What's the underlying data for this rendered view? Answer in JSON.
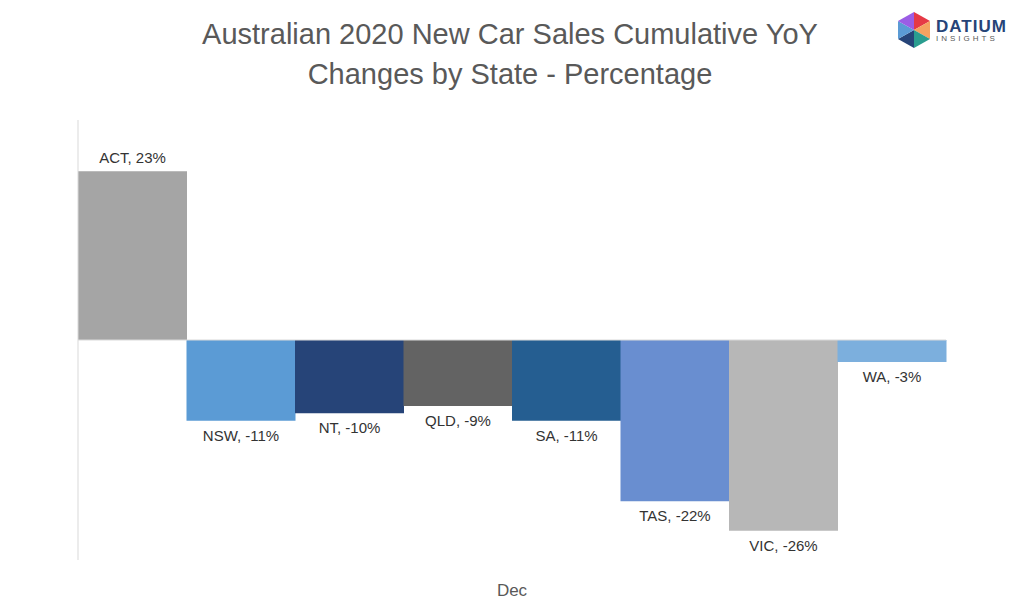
{
  "chart_data": {
    "type": "bar",
    "title": "Australian 2020 New Car Sales Cumulative YoY Changes by State - Percentage",
    "x_label": "Dec",
    "annotations": [
      "DATIUM",
      "INSIGHTS"
    ],
    "categories": [
      "ACT",
      "NSW",
      "NT",
      "QLD",
      "SA",
      "TAS",
      "VIC",
      "WA"
    ],
    "values": [
      23,
      -11,
      -10,
      -9,
      -11,
      -22,
      -26,
      -3
    ],
    "value_labels": [
      "ACT, 23%",
      "NSW, -11%",
      "NT, -10%",
      "QLD, -9%",
      "SA, -11%",
      "TAS, -22%",
      "VIC, -26%",
      "WA, -3%"
    ],
    "colors": [
      "#a5a5a5",
      "#5b9bd5",
      "#264478",
      "#636363",
      "#255e91",
      "#698ed0",
      "#b7b7b7",
      "#7cafdd"
    ],
    "ylim": [
      -30,
      30
    ],
    "data_labels": true,
    "tick_labels": false,
    "grid": false
  }
}
